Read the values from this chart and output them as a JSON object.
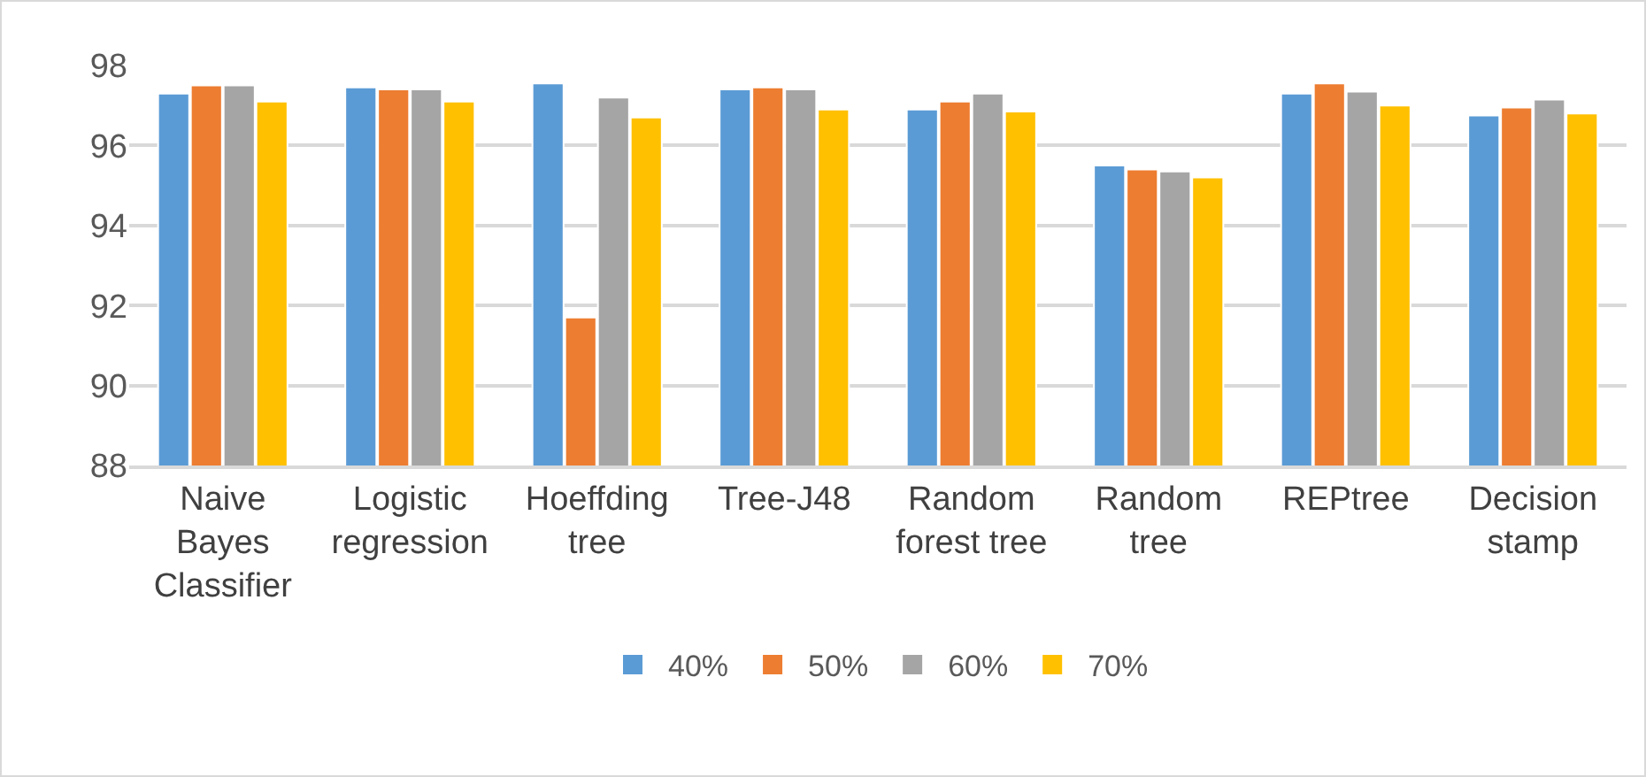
{
  "chart_data": {
    "type": "bar",
    "categories": [
      "Naive\nBayes\nClassifier",
      "Logistic\nregression",
      "Hoeffding\ntree",
      "Tree-J48",
      "Random\nforest tree",
      "Random\ntree",
      "REPtree",
      "Decision\nstamp"
    ],
    "series": [
      {
        "name": "40%",
        "color": "#5b9bd5",
        "values": [
          97.3,
          97.45,
          97.55,
          97.4,
          96.9,
          95.5,
          97.3,
          96.75
        ]
      },
      {
        "name": "50%",
        "color": "#ed7d31",
        "values": [
          97.5,
          97.4,
          91.7,
          97.45,
          97.1,
          95.4,
          97.55,
          96.95
        ]
      },
      {
        "name": "60%",
        "color": "#a5a5a5",
        "values": [
          97.5,
          97.4,
          97.2,
          97.4,
          97.3,
          95.35,
          97.35,
          97.15
        ]
      },
      {
        "name": "70%",
        "color": "#ffc000",
        "values": [
          97.1,
          97.1,
          96.7,
          96.9,
          96.85,
          95.2,
          97.0,
          96.8
        ]
      }
    ],
    "ylim": [
      88,
      98
    ],
    "yticks": [
      88,
      90,
      92,
      94,
      96,
      98
    ],
    "grid": "y",
    "legend": "bottom"
  }
}
